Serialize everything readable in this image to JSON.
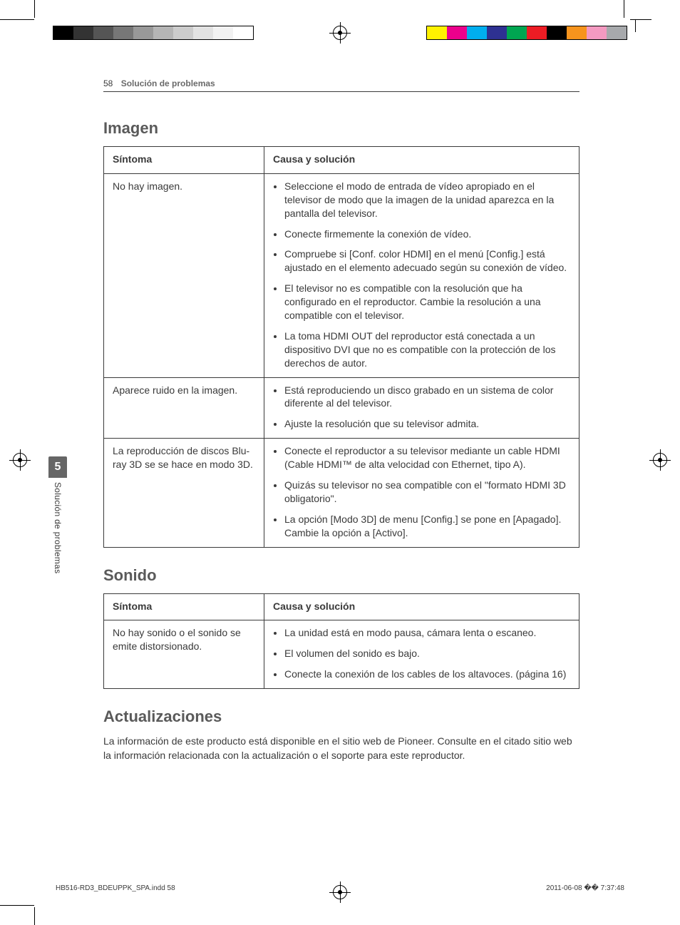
{
  "page": {
    "number": "58",
    "section_title": "Solución de problemas"
  },
  "side_tab": {
    "number": "5",
    "label": "Solución de problemas"
  },
  "sections": {
    "imagen": {
      "heading": "Imagen",
      "th_symptom": "Síntoma",
      "th_cause": "Causa y solución",
      "rows": [
        {
          "symptom": "No hay imagen.",
          "causes": [
            "Seleccione el modo de entrada de vídeo apropiado en el televisor de modo que la imagen de la unidad aparezca en la pantalla del televisor.",
            "Conecte firmemente la conexión de vídeo.",
            "Compruebe si [Conf. color HDMI] en el menú [Config.] está ajustado en el elemento adecuado según su conexión de vídeo.",
            "El televisor no es compatible con la resolución que ha configurado en el reproductor. Cambie la resolución a una compatible con el televisor.",
            "La toma HDMI OUT del reproductor está conectada a un dispositivo DVI que no es compatible con la protección de los derechos de autor."
          ]
        },
        {
          "symptom": "Aparece ruido en la imagen.",
          "causes": [
            "Está reproduciendo un disco grabado en un sistema de color diferente al del televisor.",
            "Ajuste la resolución que su televisor admita."
          ]
        },
        {
          "symptom": "La reproducción de discos Blu-ray 3D se se hace en modo 3D.",
          "causes": [
            "Conecte el reproductor a su televisor mediante un cable HDMI (Cable HDMI™ de alta velocidad con Ethernet, tipo A).",
            "Quizás su televisor no sea compatible con el \"formato HDMI 3D obligatorio\".",
            "La opción [Modo 3D] de menu [Config.] se pone en [Apagado]. Cambie la opción a [Activo]."
          ]
        }
      ]
    },
    "sonido": {
      "heading": "Sonido",
      "th_symptom": "Síntoma",
      "th_cause": "Causa y solución",
      "rows": [
        {
          "symptom": "No hay sonido o el sonido se emite distorsionado.",
          "causes": [
            "La unidad está en modo pausa, cámara lenta o escaneo.",
            "El volumen del sonido es bajo.",
            "Conecte la conexión de los cables de los altavoces. (página 16)"
          ]
        }
      ]
    },
    "actualizaciones": {
      "heading": "Actualizaciones",
      "body": "La información de este producto está disponible en el sitio web de Pioneer. Consulte en el citado sitio web la información relacionada con la actualización o el soporte para este reproductor."
    }
  },
  "footer": {
    "file_label": "HB516-RD3_BDEUPPK_SPA.indd   58",
    "timestamp": "2011-06-08   �� 7:37:48"
  },
  "printer_marks": {
    "gray_swatches": [
      "#000000",
      "#333333",
      "#555555",
      "#777777",
      "#999999",
      "#b5b5b5",
      "#cccccc",
      "#e2e2e2",
      "#f2f2f2",
      "#ffffff"
    ],
    "colour_swatches": [
      "#fff200",
      "#ec008c",
      "#00aeef",
      "#2e3192",
      "#00a651",
      "#ed1c24",
      "#000000",
      "#f7941d",
      "#f49ac1",
      "#a7a9ac"
    ]
  }
}
